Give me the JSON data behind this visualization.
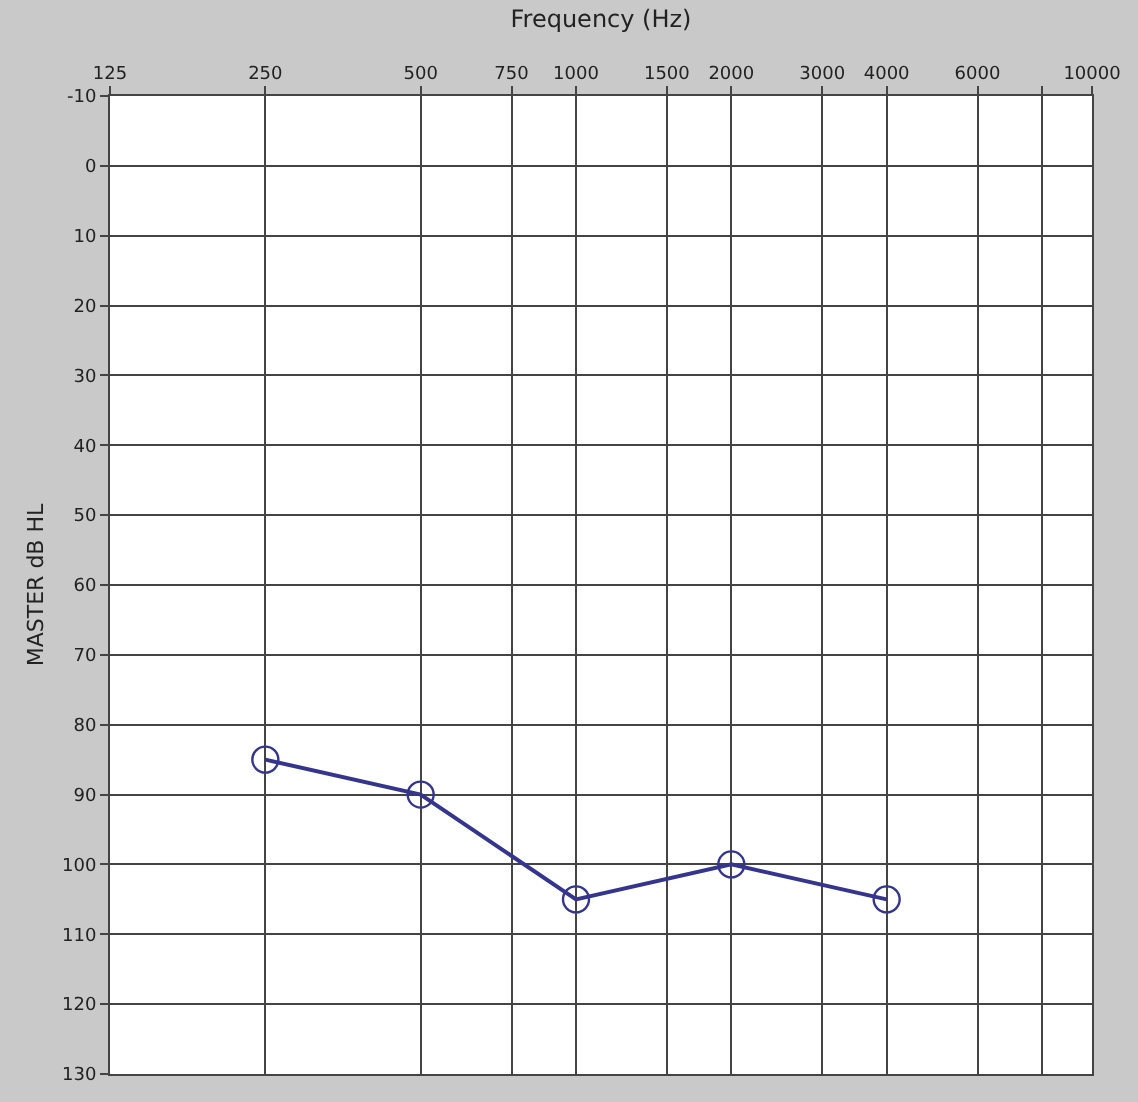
{
  "chart_data": {
    "type": "line",
    "xlabel": "Frequency (Hz)",
    "ylabel": "MASTER dB HL",
    "log": "x",
    "grid": true,
    "marker": "circle",
    "line_style": "solid",
    "xlim": [
      125,
      10000
    ],
    "xticks": [
      125,
      250,
      500,
      750,
      1000,
      1500,
      2000,
      3000,
      4000,
      6000,
      {
        "value": 8000,
        "label": null
      },
      10000
    ],
    "ylim": [
      130,
      -10
    ],
    "yticks": [
      -10,
      0,
      10,
      20,
      30,
      40,
      50,
      60,
      70,
      80,
      90,
      100,
      110,
      120,
      130
    ],
    "x": [
      250,
      500,
      1000,
      2000,
      4000
    ],
    "series": [
      {
        "color": "#35358f",
        "values": [
          85,
          90,
          105,
          100,
          105
        ]
      }
    ]
  }
}
